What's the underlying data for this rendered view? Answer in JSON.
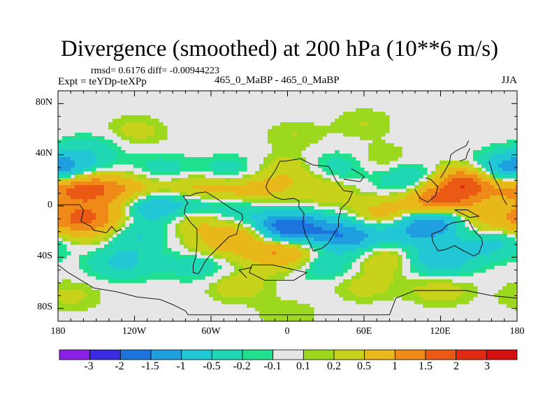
{
  "title": "Divergence (smoothed) at 200 hPa (10**6 m/s)",
  "stats": "rmsd= 0.6176 diff= -0.00944223",
  "experiment": "Expt = teYDp-teXPp",
  "cases": "465_0_MaBP - 465_0_MaBP",
  "season": "JJA",
  "chart_data": {
    "type": "heatmap",
    "title": "Divergence (smoothed) at 200 hPa (10**6 m/s)",
    "x_ticks": [
      "180",
      "120W",
      "60W",
      "0",
      "60E",
      "120E",
      "180"
    ],
    "x_tick_values": [
      -180,
      -120,
      -60,
      0,
      60,
      120,
      180
    ],
    "y_ticks": [
      "80N",
      "40N",
      "0",
      "40S",
      "80S"
    ],
    "y_tick_values": [
      80,
      40,
      0,
      -40,
      -80
    ],
    "xlim": [
      -180,
      180
    ],
    "ylim": [
      -90,
      90
    ],
    "colorbar": {
      "labels": [
        "-3",
        "-2",
        "-1.5",
        "-1",
        "-0.5",
        "-0.2",
        "-0.1",
        "0.1",
        "0.2",
        "0.5",
        "1",
        "1.5",
        "2",
        "3"
      ],
      "colors": [
        "#8a1fe6",
        "#3a2be0",
        "#1e74dd",
        "#1f9fe0",
        "#22c7d6",
        "#20d7b4",
        "#1ee08e",
        "#e6e6e6",
        "#9cd91e",
        "#c8d21b",
        "#e8b81a",
        "#ef8a18",
        "#eb5a15",
        "#e22a12",
        "#d40f0f"
      ]
    },
    "features": [
      {
        "lon": -158,
        "lat": 14,
        "value": 1.6
      },
      {
        "lon": -120,
        "lat": 12,
        "value": 0.9
      },
      {
        "lon": -75,
        "lat": 10,
        "value": 1.1
      },
      {
        "lon": -45,
        "lat": 13,
        "value": 0.6
      },
      {
        "lon": -20,
        "lat": 12,
        "value": 0.5
      },
      {
        "lon": 30,
        "lat": 12,
        "value": 0.4
      },
      {
        "lon": 140,
        "lat": 18,
        "value": 1.8
      },
      {
        "lon": 175,
        "lat": 15,
        "value": 0.7
      },
      {
        "lon": -168,
        "lat": -10,
        "value": 1.2
      },
      {
        "lon": -140,
        "lat": -8,
        "value": 0.8
      },
      {
        "lon": -72,
        "lat": -8,
        "value": 0.9
      },
      {
        "lon": -30,
        "lat": -22,
        "value": 1.0
      },
      {
        "lon": 10,
        "lat": -30,
        "value": 0.6
      },
      {
        "lon": 75,
        "lat": -8,
        "value": 0.9
      },
      {
        "lon": 118,
        "lat": 2,
        "value": 1.9
      },
      {
        "lon": 150,
        "lat": -12,
        "value": 0.8
      },
      {
        "lon": -60,
        "lat": -32,
        "value": 0.5
      },
      {
        "lon": -8,
        "lat": -37,
        "value": 0.9
      },
      {
        "lon": 75,
        "lat": -40,
        "value": 0.5
      },
      {
        "lon": -150,
        "lat": -22,
        "value": 0.3
      },
      {
        "lon": -110,
        "lat": 0,
        "value": -1.1
      },
      {
        "lon": -75,
        "lat": 2,
        "value": -1.4
      },
      {
        "lon": -40,
        "lat": -3,
        "value": -0.6
      },
      {
        "lon": -45,
        "lat": 25,
        "value": -0.5
      },
      {
        "lon": -100,
        "lat": 27,
        "value": -0.4
      },
      {
        "lon": -5,
        "lat": -18,
        "value": -2.0
      },
      {
        "lon": 20,
        "lat": -20,
        "value": -0.9
      },
      {
        "lon": 50,
        "lat": -23,
        "value": -1.3
      },
      {
        "lon": 95,
        "lat": -18,
        "value": -1.0
      },
      {
        "lon": 120,
        "lat": -10,
        "value": -1.6
      },
      {
        "lon": 170,
        "lat": 27,
        "value": -1.2
      },
      {
        "lon": -170,
        "lat": 30,
        "value": -0.8
      },
      {
        "lon": 95,
        "lat": 22,
        "value": -0.6
      },
      {
        "lon": 40,
        "lat": 30,
        "value": -0.4
      },
      {
        "lon": -120,
        "lat": -22,
        "value": -0.6
      },
      {
        "lon": -130,
        "lat": -44,
        "value": -0.6
      },
      {
        "lon": -70,
        "lat": -45,
        "value": -0.5
      },
      {
        "lon": 120,
        "lat": -42,
        "value": -0.9
      },
      {
        "lon": 160,
        "lat": -28,
        "value": -0.7
      },
      {
        "lon": 30,
        "lat": -45,
        "value": -0.5
      },
      {
        "lon": -120,
        "lat": 58,
        "value": 0.3
      },
      {
        "lon": 60,
        "lat": 65,
        "value": 0.2
      },
      {
        "lon": 5,
        "lat": 55,
        "value": 0.2
      },
      {
        "lon": -150,
        "lat": 45,
        "value": -0.3
      },
      {
        "lon": 0,
        "lat": -85,
        "value": 0.2
      },
      {
        "lon": -170,
        "lat": -70,
        "value": 0.25
      },
      {
        "lon": -40,
        "lat": -62,
        "value": 0.35
      },
      {
        "lon": 60,
        "lat": -62,
        "value": 0.3
      },
      {
        "lon": 120,
        "lat": -65,
        "value": 0.35
      },
      {
        "lon": 0,
        "lat": 27,
        "value": 0.4
      },
      {
        "lon": 75,
        "lat": 35,
        "value": 0.3
      }
    ],
    "coastlines": [
      [
        [
          -180,
          1
        ],
        [
          -163,
          1
        ],
        [
          -160,
          -3
        ],
        [
          -162,
          -12
        ],
        [
          -154,
          -16
        ],
        [
          -152,
          -19
        ],
        [
          -146,
          -20
        ],
        [
          -142,
          -21
        ],
        [
          -138,
          -16
        ],
        [
          -134,
          -20
        ],
        [
          -130,
          -18
        ]
      ],
      [
        [
          -82,
          8
        ],
        [
          -76,
          8
        ],
        [
          -72,
          10
        ],
        [
          -64,
          11
        ],
        [
          -56,
          6
        ],
        [
          -50,
          2
        ],
        [
          -44,
          -2
        ],
        [
          -36,
          -6
        ],
        [
          -35,
          -10
        ],
        [
          -38,
          -14
        ],
        [
          -40,
          -22
        ],
        [
          -46,
          -24
        ],
        [
          -52,
          -30
        ],
        [
          -58,
          -36
        ],
        [
          -62,
          -40
        ],
        [
          -65,
          -44
        ],
        [
          -67,
          -48
        ],
        [
          -70,
          -53
        ],
        [
          -74,
          -52
        ],
        [
          -74,
          -46
        ],
        [
          -72,
          -40
        ],
        [
          -71,
          -30
        ],
        [
          -71,
          -18
        ],
        [
          -76,
          -13
        ],
        [
          -81,
          -6
        ],
        [
          -80,
          0
        ],
        [
          -78,
          2
        ],
        [
          -82,
          8
        ]
      ],
      [
        [
          -15,
          11
        ],
        [
          -17,
          15
        ],
        [
          -15,
          20
        ],
        [
          -10,
          27
        ],
        [
          -6,
          35
        ],
        [
          -2,
          35
        ],
        [
          10,
          37
        ],
        [
          20,
          32
        ],
        [
          32,
          31
        ],
        [
          34,
          28
        ],
        [
          38,
          20
        ],
        [
          44,
          12
        ],
        [
          51,
          11
        ],
        [
          48,
          4
        ],
        [
          42,
          -2
        ],
        [
          40,
          -10
        ],
        [
          40,
          -16
        ],
        [
          35,
          -24
        ],
        [
          32,
          -29
        ],
        [
          27,
          -33
        ],
        [
          20,
          -35
        ],
        [
          18,
          -30
        ],
        [
          14,
          -22
        ],
        [
          12,
          -14
        ],
        [
          13,
          -6
        ],
        [
          9,
          -1
        ],
        [
          9,
          4
        ],
        [
          5,
          6
        ],
        [
          -4,
          5
        ],
        [
          -10,
          7
        ],
        [
          -15,
          11
        ]
      ],
      [
        [
          -12,
          -46
        ],
        [
          -28,
          -46
        ],
        [
          -30,
          -52
        ],
        [
          -18,
          -58
        ],
        [
          5,
          -58
        ],
        [
          15,
          -52
        ],
        [
          -12,
          -46
        ]
      ],
      [
        [
          -28,
          -48
        ],
        [
          -38,
          -50
        ],
        [
          -32,
          -56
        ]
      ],
      [
        [
          44,
          21
        ],
        [
          57,
          19
        ],
        [
          60,
          23
        ],
        [
          54,
          27
        ],
        [
          50,
          29
        ]
      ],
      [
        [
          100,
          13
        ],
        [
          104,
          6
        ],
        [
          110,
          3
        ],
        [
          116,
          8
        ],
        [
          118,
          15
        ],
        [
          112,
          21
        ],
        [
          108,
          22
        ]
      ],
      [
        [
          113,
          -22
        ],
        [
          114,
          -28
        ],
        [
          118,
          -35
        ],
        [
          124,
          -34
        ],
        [
          131,
          -31
        ],
        [
          138,
          -35
        ],
        [
          146,
          -39
        ],
        [
          150,
          -37
        ],
        [
          153,
          -29
        ],
        [
          152,
          -25
        ],
        [
          146,
          -19
        ],
        [
          142,
          -11
        ],
        [
          137,
          -12
        ],
        [
          130,
          -13
        ],
        [
          125,
          -15
        ],
        [
          121,
          -19
        ],
        [
          113,
          -22
        ]
      ],
      [
        [
          131,
          -3
        ],
        [
          137,
          -3
        ],
        [
          141,
          -3
        ],
        [
          146,
          -6
        ],
        [
          150,
          -8
        ],
        [
          143,
          -9
        ],
        [
          137,
          -6
        ],
        [
          131,
          -3
        ]
      ],
      [
        [
          135,
          35
        ],
        [
          140,
          37
        ],
        [
          141,
          41
        ],
        [
          143,
          45
        ]
      ],
      [
        [
          120,
          22
        ],
        [
          122,
          25
        ],
        [
          127,
          34
        ],
        [
          128,
          40
        ],
        [
          132,
          43
        ],
        [
          140,
          47
        ],
        [
          142,
          51
        ]
      ],
      [
        [
          158,
          35
        ],
        [
          162,
          22
        ],
        [
          166,
          15
        ],
        [
          169,
          6
        ],
        [
          172,
          1
        ]
      ],
      [
        [
          -180,
          -46
        ],
        [
          -172,
          -52
        ],
        [
          -162,
          -58
        ],
        [
          -152,
          -64
        ],
        [
          -134,
          -67
        ],
        [
          -118,
          -71
        ],
        [
          -100,
          -73
        ],
        [
          -90,
          -77
        ],
        [
          -80,
          -82
        ],
        [
          -78,
          -85
        ],
        [
          80,
          -85
        ],
        [
          85,
          -72
        ],
        [
          100,
          -66
        ],
        [
          120,
          -66
        ],
        [
          140,
          -66
        ],
        [
          160,
          -70
        ],
        [
          180,
          -72
        ]
      ]
    ]
  }
}
